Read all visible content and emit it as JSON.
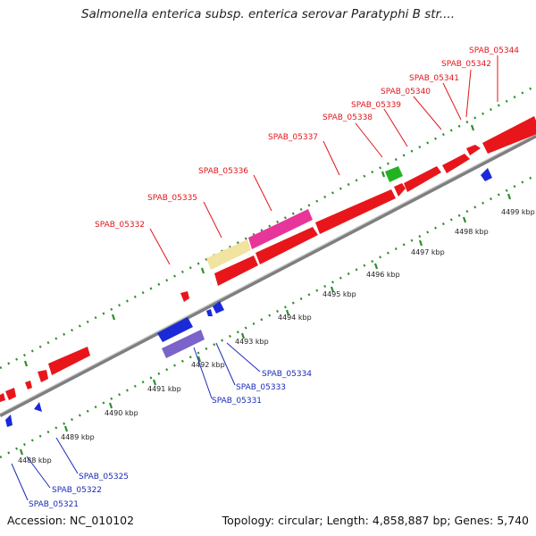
{
  "title": "Salmonella enterica subsp. enterica serovar Paratyphi B str....",
  "footer": {
    "accession": "Accession: NC_010102",
    "stats": "Topology: circular; Length: 4,858,887 bp; Genes: 5,740"
  },
  "colors": {
    "forward_cds": "#e8161b",
    "reverse_cds": "#1a2ad8",
    "pink_feature": "#e8359a",
    "cream_feature": "#f1e3a0",
    "green_feature": "#22b322",
    "purple_feature": "#7a63c9",
    "backbone": "#888888",
    "tick": "#2f8f2f",
    "forward_label": "#e0161b",
    "reverse_label": "#1a2ab8"
  },
  "ticks": [
    "4488 kbp",
    "4489 kbp",
    "4490 kbp",
    "4491 kbp",
    "4492 kbp",
    "4493 kbp",
    "4494 kbp",
    "4495 kbp",
    "4496 kbp",
    "4497 kbp",
    "4498 kbp",
    "4499 kbp"
  ],
  "forward_labels": [
    "SPAB_05332",
    "SPAB_05335",
    "SPAB_05336",
    "SPAB_05337",
    "SPAB_05338",
    "SPAB_05339",
    "SPAB_05340",
    "SPAB_05341",
    "SPAB_05342",
    "SPAB_05344"
  ],
  "reverse_labels": [
    "SPAB_05321",
    "SPAB_05322",
    "SPAB_05325",
    "SPAB_05331",
    "SPAB_05333",
    "SPAB_05334"
  ]
}
